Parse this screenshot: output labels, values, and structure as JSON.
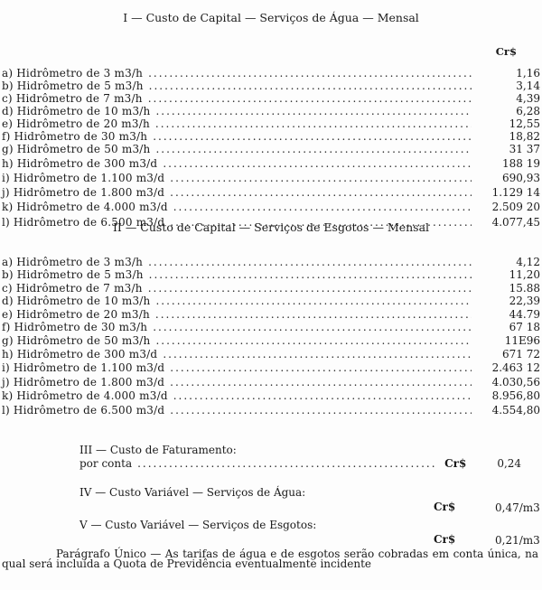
{
  "section1": {
    "title": "I — Custo de Capital — Serviços de Água — Mensal",
    "currency": "Cr$",
    "rows": [
      {
        "label": "a) Hidrômetro de 3 m3/h",
        "value": "1,16"
      },
      {
        "label": "b) Hidrômetro de 5 m3/h",
        "value": "3,14"
      },
      {
        "label": "c) Hidrômetro de 7 m3/h",
        "value": "4,39"
      },
      {
        "label": "d) Hidrômetro de 10 m3/h",
        "value": "6,28"
      },
      {
        "label": "e) Hidrômetro de 20 m3/h",
        "value": "12,55"
      },
      {
        "label": "f) Hidrômetro de 30 m3/h",
        "value": "18,82"
      },
      {
        "label": "g) Hidrômetro de 50 m3/h",
        "value": "31 37"
      },
      {
        "label": "h) Hidrômetro de 300 m3/d",
        "value": "188 19"
      },
      {
        "label": "i) Hidrômetro de 1.100 m3/d",
        "value": "690,93"
      },
      {
        "label": "j) Hidrômetro de 1.800 m3/d",
        "value": "1.129 14"
      },
      {
        "label": "k) Hidrômetro de 4.000 m3/d",
        "value": "2.509 20"
      },
      {
        "label": "l) Hidrômetro de 6.500 m3/d",
        "value": "4.077,45"
      }
    ]
  },
  "section2": {
    "title": "II — Custo de Capital — Serviços de Esgotos — Mensal",
    "rows": [
      {
        "label": "a) Hidrômetro de 3 m3/h",
        "value": "4,12"
      },
      {
        "label": "b) Hidrômetro de 5 m3/h",
        "value": "11,20"
      },
      {
        "label": "c) Hidrômetro de 7 m3/h",
        "value": "15.88"
      },
      {
        "label": "d) Hidrômetro de 10 m3/h",
        "value": "22,39"
      },
      {
        "label": "e) Hidrômetro de 20 m3/h",
        "value": "44.79"
      },
      {
        "label": "f) Hidrômetro de 30 m3/h",
        "value": "67 18"
      },
      {
        "label": "g) Hidrômetro de 50 m3/h",
        "value": "11E96"
      },
      {
        "label": "h) Hidrômetro de 300 m3/d",
        "value": "671 72"
      },
      {
        "label": "i) Hidrômetro de 1.100 m3/d",
        "value": "2.463 12"
      },
      {
        "label": "j) Hidrômetro de 1.800 m3/d",
        "value": "4.030,56"
      },
      {
        "label": "k) Hidrômetro de 4.000 m3/d",
        "value": "8.956,80"
      },
      {
        "label": "l) Hidrômetro de 6.500 m3/d",
        "value": "4.554,80"
      }
    ]
  },
  "section3": {
    "title": "III — Custo de Faturamento:",
    "label": "por conta",
    "currency": "Cr$",
    "value": "0,24"
  },
  "section4": {
    "title": "IV — Custo Variável — Serviços de Água:",
    "currency": "Cr$",
    "value": "0,47/m3"
  },
  "section5": {
    "title": "V — Custo Variável — Serviços de Esgotos:",
    "currency": "Cr$",
    "value": "0,21/m3"
  },
  "paragraph": "Parágrafo Único — As tarifas de água e de esgotos serão cobradas em conta única, na qual será incluída a Quota de Previdência eventualmente incidente"
}
